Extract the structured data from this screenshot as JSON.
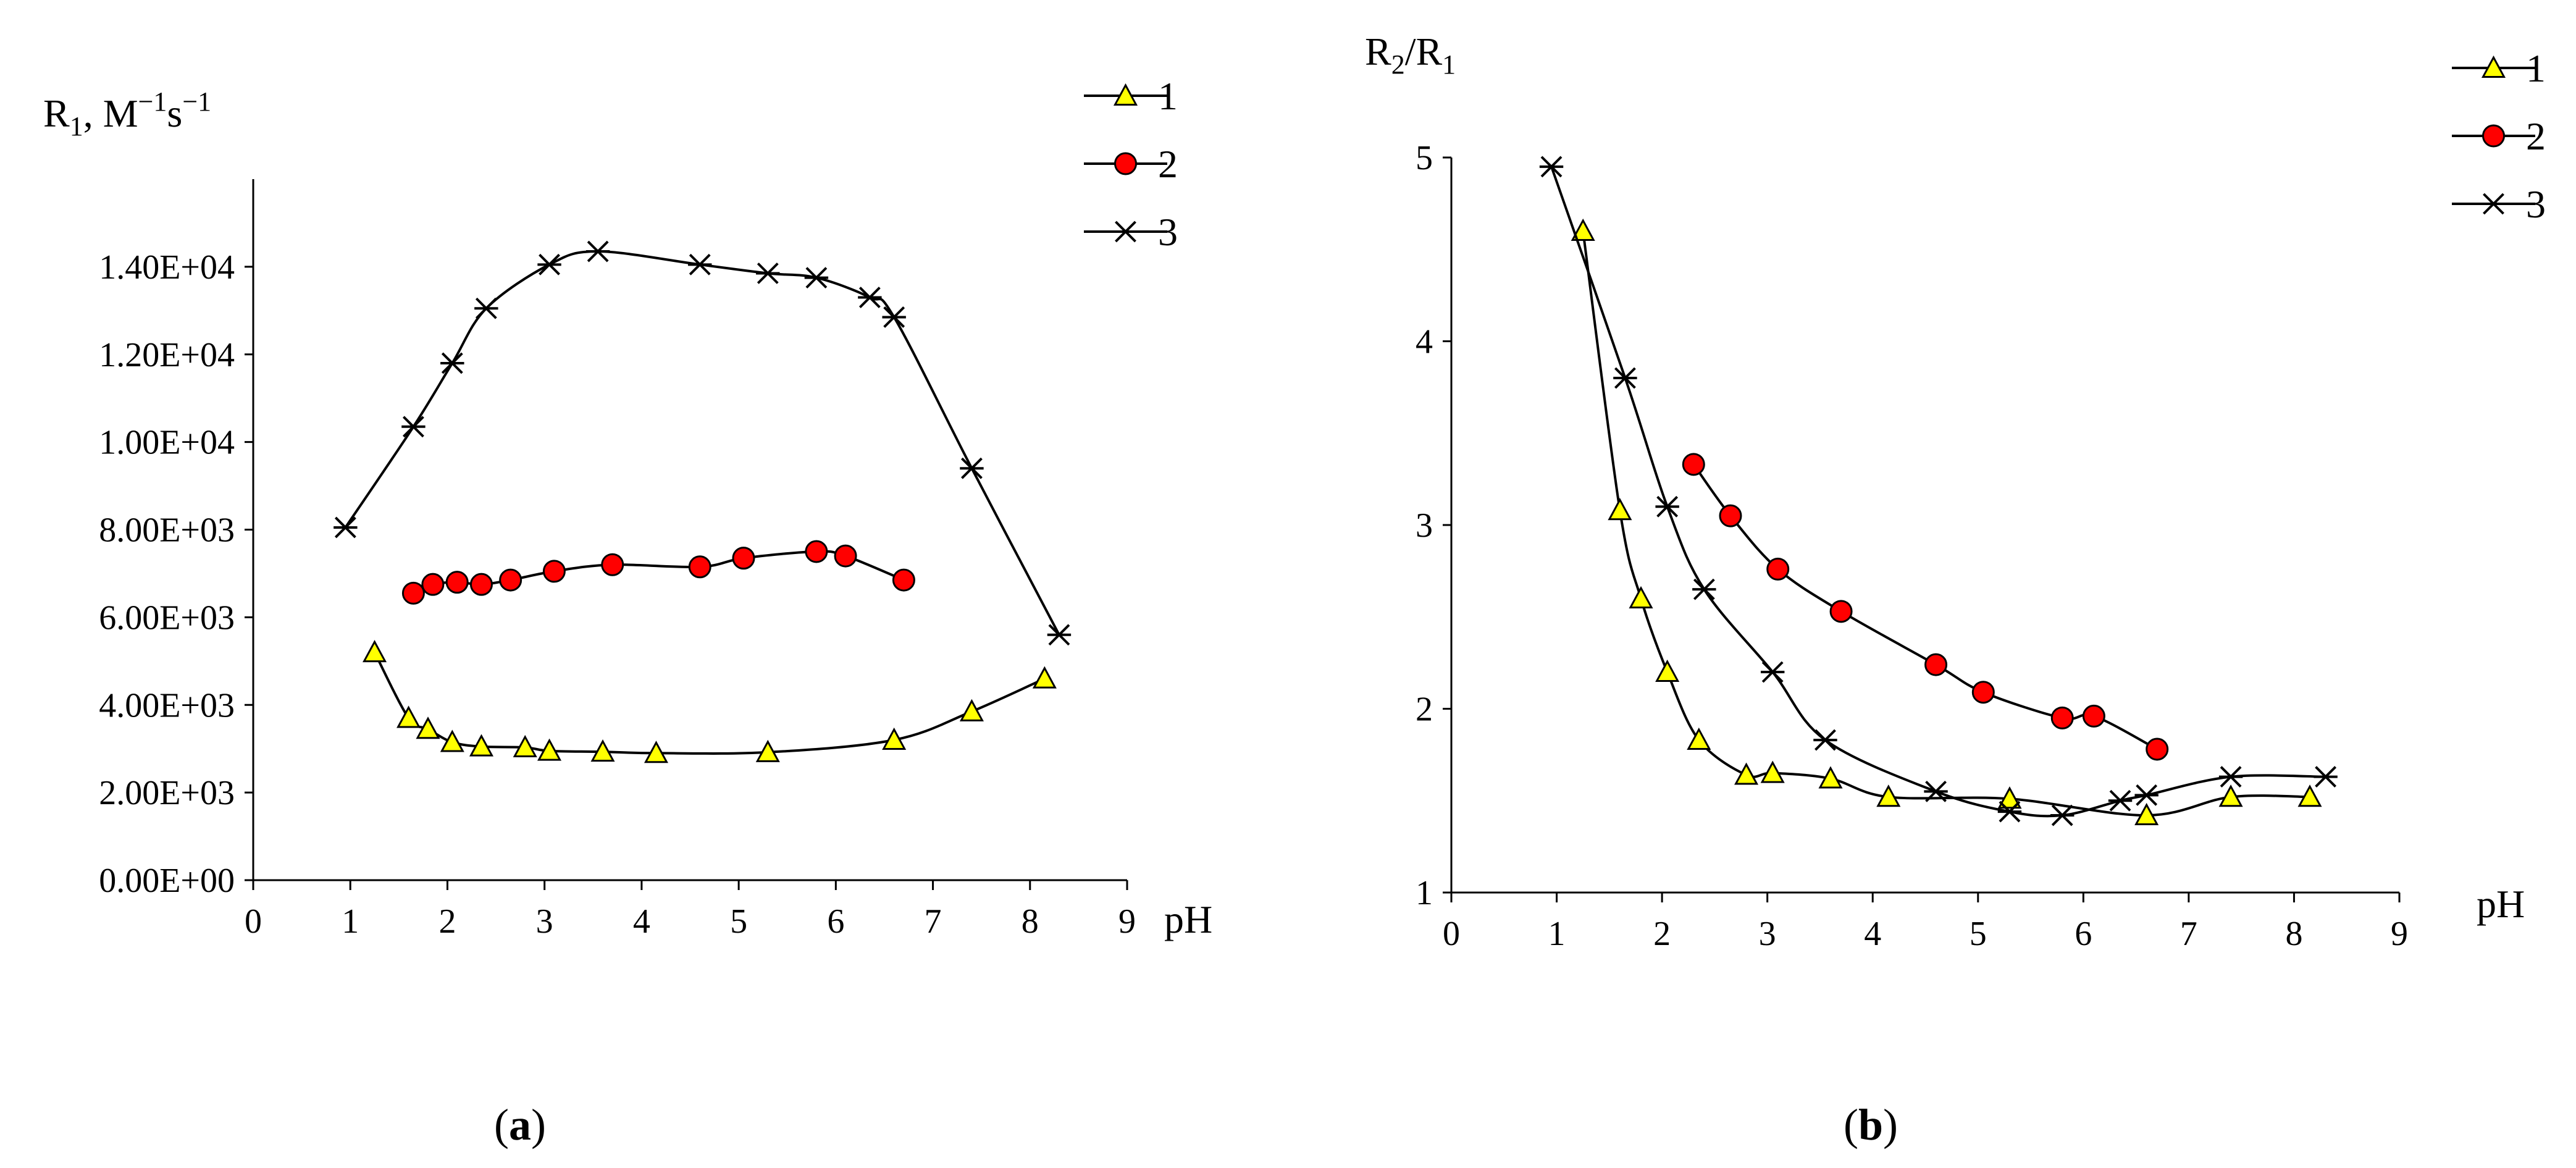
{
  "colors": {
    "series1": "#ffff00",
    "series2": "#ff0000",
    "series3": "#000000",
    "axis": "#000000"
  },
  "chart_data": [
    {
      "id": "a",
      "type": "line",
      "panel_label": {
        "open": "(",
        "letter": "a",
        "close": ")"
      },
      "ylabel": {
        "base": "R",
        "sub": "1",
        "rest": ", M",
        "sup1": "−1",
        "s": "s",
        "sup2": "−1"
      },
      "xlabel": "pH",
      "xlim": [
        0,
        9
      ],
      "ylim": [
        0,
        16000
      ],
      "xticks": [
        0,
        1,
        2,
        3,
        4,
        5,
        6,
        7,
        8,
        9
      ],
      "xtick_labels": [
        "0",
        "1",
        "2",
        "3",
        "4",
        "5",
        "6",
        "7",
        "8",
        "9"
      ],
      "yticks": [
        0,
        2000,
        4000,
        6000,
        8000,
        10000,
        12000,
        14000
      ],
      "ytick_labels": [
        "0.00E+00",
        "2.00E+03",
        "4.00E+03",
        "6.00E+03",
        "8.00E+03",
        "1.00E+04",
        "1.20E+04",
        "1.40E+04"
      ],
      "legend": [
        "1",
        "2",
        "3"
      ],
      "series": [
        {
          "name": "1",
          "marker": "triangle",
          "x": [
            1.25,
            1.6,
            1.8,
            2.05,
            2.35,
            2.8,
            3.05,
            3.6,
            4.15,
            5.3,
            6.6,
            7.4,
            8.15
          ],
          "y": [
            5200,
            3700,
            3450,
            3150,
            3050,
            3030,
            2950,
            2930,
            2900,
            2920,
            3200,
            3850,
            4600
          ]
        },
        {
          "name": "2",
          "marker": "circle",
          "x": [
            1.65,
            1.85,
            2.1,
            2.35,
            2.65,
            3.1,
            3.7,
            4.6,
            5.05,
            5.8,
            6.1,
            6.7
          ],
          "y": [
            6550,
            6750,
            6800,
            6750,
            6850,
            7050,
            7200,
            7150,
            7350,
            7500,
            7400,
            6850
          ]
        },
        {
          "name": "3",
          "marker": "star",
          "x": [
            0.95,
            1.65,
            2.05,
            2.4,
            3.05,
            3.55,
            4.6,
            5.3,
            5.8,
            6.35,
            6.6,
            7.4,
            8.3
          ],
          "y": [
            8050,
            10350,
            11800,
            13050,
            14050,
            14350,
            14050,
            13850,
            13750,
            13300,
            12850,
            9400,
            5600
          ]
        }
      ]
    },
    {
      "id": "b",
      "type": "line",
      "panel_label": {
        "open": "(",
        "letter": "b",
        "close": ")"
      },
      "ylabel": {
        "base1": "R",
        "sub1": "2",
        "slash": "/R",
        "sub2": "1"
      },
      "xlabel": "pH",
      "xlim": [
        0,
        9
      ],
      "ylim": [
        1,
        5
      ],
      "xticks": [
        0,
        1,
        2,
        3,
        4,
        5,
        6,
        7,
        8,
        9
      ],
      "xtick_labels": [
        "0",
        "1",
        "2",
        "3",
        "4",
        "5",
        "6",
        "7",
        "8",
        "9"
      ],
      "yticks": [
        1,
        2,
        3,
        4,
        5
      ],
      "ytick_labels": [
        "1",
        "2",
        "3",
        "4",
        "5"
      ],
      "legend": [
        "1",
        "2",
        "3"
      ],
      "series": [
        {
          "name": "1",
          "marker": "triangle",
          "x": [
            1.25,
            1.6,
            1.8,
            2.05,
            2.35,
            2.8,
            3.05,
            3.6,
            4.15,
            5.3,
            6.6,
            7.4,
            8.15
          ],
          "y": [
            4.6,
            3.08,
            2.6,
            2.2,
            1.83,
            1.64,
            1.65,
            1.62,
            1.52,
            1.51,
            1.42,
            1.52,
            1.52
          ]
        },
        {
          "name": "2",
          "marker": "circle",
          "x": [
            2.3,
            2.65,
            3.1,
            3.7,
            4.6,
            5.05,
            5.8,
            6.1,
            6.7
          ],
          "y": [
            3.33,
            3.05,
            2.76,
            2.53,
            2.24,
            2.09,
            1.95,
            1.96,
            1.78
          ]
        },
        {
          "name": "3",
          "marker": "star",
          "x": [
            0.95,
            1.65,
            2.05,
            2.4,
            3.05,
            3.55,
            4.6,
            5.3,
            5.8,
            6.35,
            6.6,
            7.4,
            8.3
          ],
          "y": [
            4.95,
            3.8,
            3.1,
            2.65,
            2.2,
            1.83,
            1.55,
            1.44,
            1.42,
            1.5,
            1.53,
            1.63,
            1.63
          ]
        }
      ]
    }
  ]
}
